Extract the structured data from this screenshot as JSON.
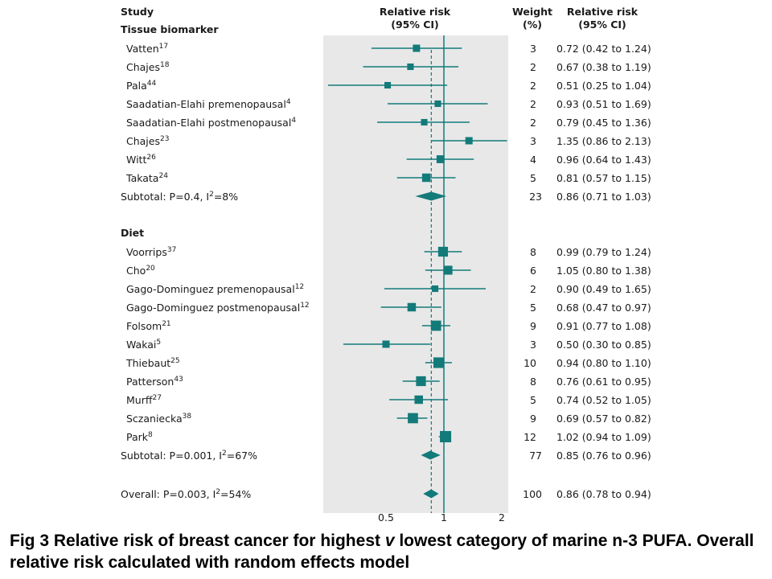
{
  "headers": {
    "study": "Study",
    "rr_col": [
      "Relative risk",
      "(95% CI)"
    ],
    "weight_col": [
      "Weight",
      "(%)"
    ],
    "rr_text_col": [
      "Relative risk",
      "(95% CI)"
    ]
  },
  "caption": {
    "prefix": "Fig 3 Relative risk of breast cancer for highest ",
    "italic": "v",
    "suffix": " lowest category of marine n-3 PUFA. Overall relative risk calculated with random effects model"
  },
  "colors": {
    "marker": "#137a7a",
    "panel": "#e8e8e8",
    "line": "#137a7a"
  },
  "chart_data": {
    "type": "forest",
    "x_scale": "log",
    "xlim": [
      0.25,
      2.3
    ],
    "x_ticks": [
      0.5,
      1,
      2
    ],
    "x_tick_labels": [
      "0.5",
      "1",
      "2"
    ],
    "reference_line": 1,
    "pooled_line": 0.86,
    "groups": [
      {
        "name": "Tissue biomarker",
        "studies": [
          {
            "name": "Vatten",
            "ref": "17",
            "rr": 0.72,
            "lo": 0.42,
            "hi": 1.24,
            "weight": 3,
            "ci_text": "0.72 (0.42 to 1.24)"
          },
          {
            "name": "Chajes",
            "ref": "18",
            "rr": 0.67,
            "lo": 0.38,
            "hi": 1.19,
            "weight": 2,
            "ci_text": "0.67 (0.38 to 1.19)"
          },
          {
            "name": "Pala",
            "ref": "44",
            "rr": 0.51,
            "lo": 0.25,
            "hi": 1.04,
            "weight": 2,
            "ci_text": "0.51 (0.25 to 1.04)"
          },
          {
            "name": "Saadatian-Elahi premenopausal",
            "ref": "4",
            "rr": 0.93,
            "lo": 0.51,
            "hi": 1.69,
            "weight": 2,
            "ci_text": "0.93 (0.51 to 1.69)"
          },
          {
            "name": "Saadatian-Elahi postmenopausal",
            "ref": "4",
            "rr": 0.79,
            "lo": 0.45,
            "hi": 1.36,
            "weight": 2,
            "ci_text": "0.79 (0.45 to 1.36)"
          },
          {
            "name": "Chajes",
            "ref": "23",
            "rr": 1.35,
            "lo": 0.86,
            "hi": 2.13,
            "weight": 3,
            "ci_text": "1.35 (0.86 to 2.13)"
          },
          {
            "name": "Witt",
            "ref": "26",
            "rr": 0.96,
            "lo": 0.64,
            "hi": 1.43,
            "weight": 4,
            "ci_text": "0.96 (0.64 to 1.43)"
          },
          {
            "name": "Takata",
            "ref": "24",
            "rr": 0.81,
            "lo": 0.57,
            "hi": 1.15,
            "weight": 5,
            "ci_text": "0.81 (0.57 to 1.15)"
          }
        ],
        "subtotal": {
          "label": "Subtotal: P=0.4, I",
          "sup": "2",
          "label_end": "=8%",
          "rr": 0.86,
          "lo": 0.71,
          "hi": 1.03,
          "weight": 23,
          "ci_text": "0.86 (0.71 to 1.03)"
        }
      },
      {
        "name": "Diet",
        "studies": [
          {
            "name": "Voorrips",
            "ref": "37",
            "rr": 0.99,
            "lo": 0.79,
            "hi": 1.24,
            "weight": 8,
            "ci_text": "0.99 (0.79 to 1.24)"
          },
          {
            "name": "Cho",
            "ref": "20",
            "rr": 1.05,
            "lo": 0.8,
            "hi": 1.38,
            "weight": 6,
            "ci_text": "1.05 (0.80 to 1.38)"
          },
          {
            "name": "Gago-Dominguez premenopausal",
            "ref": "12",
            "rr": 0.9,
            "lo": 0.49,
            "hi": 1.65,
            "weight": 2,
            "ci_text": "0.90 (0.49 to 1.65)"
          },
          {
            "name": "Gago-Dominguez postmenopausal",
            "ref": "12",
            "rr": 0.68,
            "lo": 0.47,
            "hi": 0.97,
            "weight": 5,
            "ci_text": "0.68 (0.47 to 0.97)"
          },
          {
            "name": "Folsom",
            "ref": "21",
            "rr": 0.91,
            "lo": 0.77,
            "hi": 1.08,
            "weight": 9,
            "ci_text": "0.91 (0.77 to 1.08)"
          },
          {
            "name": "Wakai",
            "ref": "5",
            "rr": 0.5,
            "lo": 0.3,
            "hi": 0.85,
            "weight": 3,
            "ci_text": "0.50 (0.30 to 0.85)"
          },
          {
            "name": "Thiebaut",
            "ref": "25",
            "rr": 0.94,
            "lo": 0.8,
            "hi": 1.1,
            "weight": 10,
            "ci_text": "0.94 (0.80 to 1.10)"
          },
          {
            "name": "Patterson",
            "ref": "43",
            "rr": 0.76,
            "lo": 0.61,
            "hi": 0.95,
            "weight": 8,
            "ci_text": "0.76 (0.61 to 0.95)"
          },
          {
            "name": "Murff",
            "ref": "27",
            "rr": 0.74,
            "lo": 0.52,
            "hi": 1.05,
            "weight": 5,
            "ci_text": "0.74 (0.52 to 1.05)"
          },
          {
            "name": "Sczaniecka",
            "ref": "38",
            "rr": 0.69,
            "lo": 0.57,
            "hi": 0.82,
            "weight": 9,
            "ci_text": "0.69 (0.57 to 0.82)"
          },
          {
            "name": "Park",
            "ref": "8",
            "rr": 1.02,
            "lo": 0.94,
            "hi": 1.09,
            "weight": 12,
            "ci_text": "1.02 (0.94 to 1.09)"
          }
        ],
        "subtotal": {
          "label": "Subtotal: P=0.001, I",
          "sup": "2",
          "label_end": "=67%",
          "rr": 0.85,
          "lo": 0.76,
          "hi": 0.96,
          "weight": 77,
          "ci_text": "0.85 (0.76 to 0.96)"
        }
      }
    ],
    "overall": {
      "label": "Overall: P=0.003, I",
      "sup": "2",
      "label_end": "=54%",
      "rr": 0.86,
      "lo": 0.78,
      "hi": 0.94,
      "weight": 100,
      "ci_text": "0.86 (0.78 to 0.94)"
    }
  }
}
